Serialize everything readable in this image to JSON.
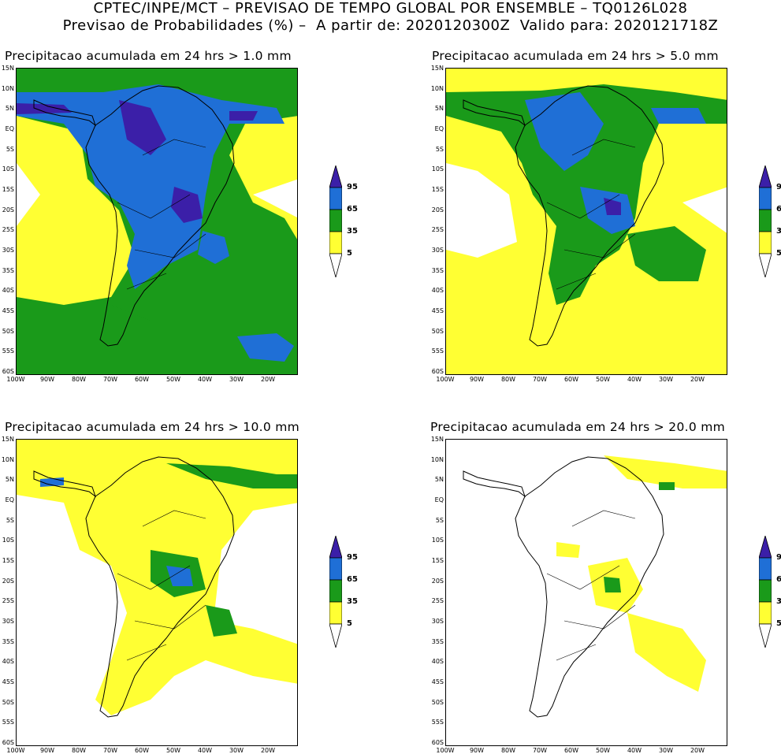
{
  "header": {
    "line1": "CPTEC/INPE/MCT – PREVISAO DE TEMPO GLOBAL POR ENSEMBLE – TQ0126L028",
    "line2": "Previsao de Probabilidades (%) –  A partir de: 2020120300Z  Valido para: 2020121718Z"
  },
  "panels": [
    {
      "title": "Precipitacao acumulada em 24 hrs > 1.0 mm"
    },
    {
      "title": "Precipitacao acumulada em 24 hrs > 5.0 mm"
    },
    {
      "title": "Precipitacao acumulada em 24 hrs > 10.0 mm"
    },
    {
      "title": "Precipitacao acumulada em 24 hrs > 20.0 mm"
    }
  ],
  "lat_labels": [
    "15N",
    "10N",
    "5N",
    "EQ",
    "5S",
    "10S",
    "15S",
    "20S",
    "25S",
    "30S",
    "35S",
    "40S",
    "45S",
    "50S",
    "55S",
    "60S"
  ],
  "lon_labels": [
    "100W",
    "90W",
    "80W",
    "70W",
    "60W",
    "50W",
    "40W",
    "30W",
    "20W"
  ],
  "colorbar": {
    "labels": [
      "95",
      "65",
      "35",
      "5"
    ],
    "colors": {
      "c95": "#3b1fa8",
      "c65": "#1f6fd6",
      "c35": "#1a9a1a",
      "c5": "#ffff33",
      "c0": "#ffffff"
    }
  }
}
